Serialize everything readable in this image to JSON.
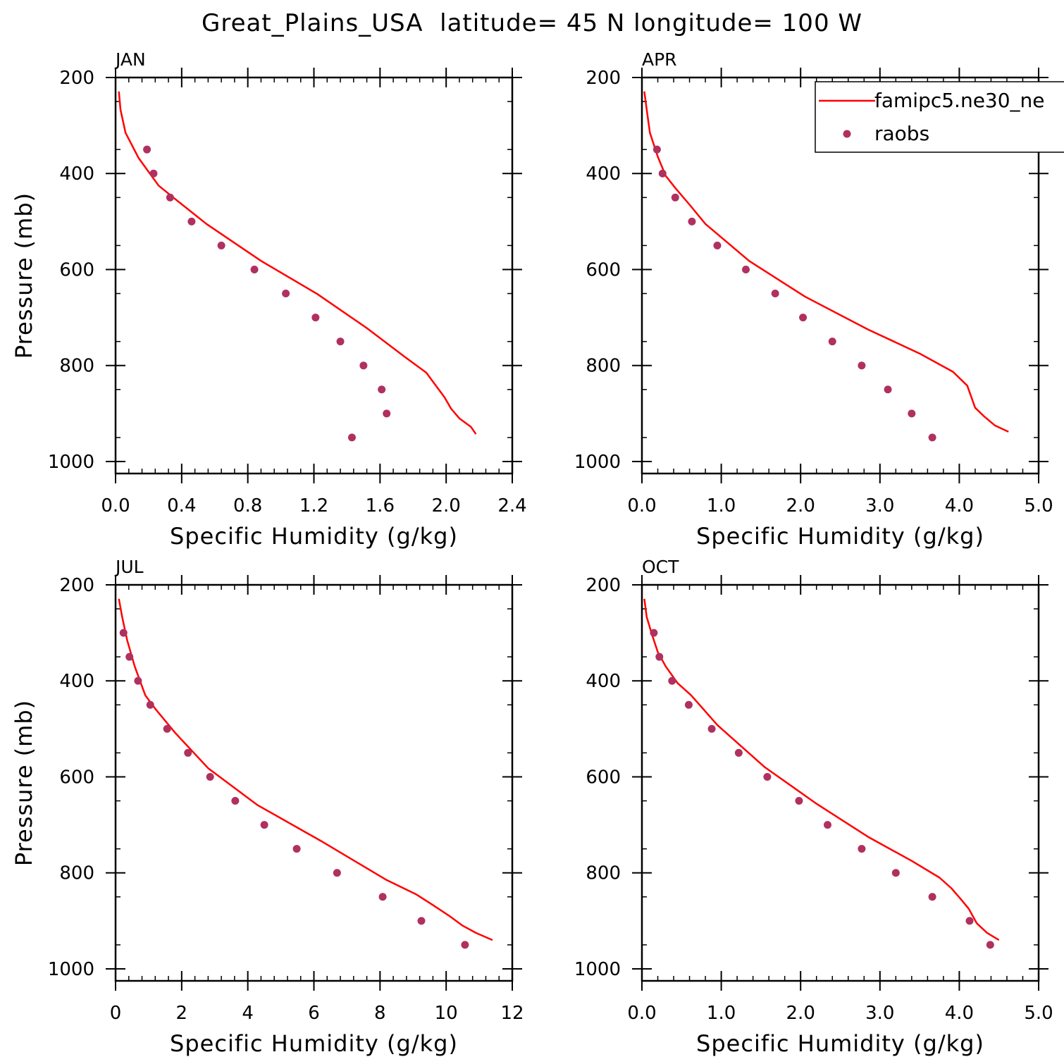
{
  "title": "Great_Plains_USA  latitude= 45 N longitude= 100 W",
  "legend": {
    "placement": "top-right of APR panel",
    "model_label": "famipc5.ne30_ne",
    "obs_label": "raobs",
    "model_color": "#ff0000",
    "obs_color": "#b03060"
  },
  "chart_data": [
    {
      "type": "line",
      "month": "JAN",
      "xlabel": "Specific Humidity (g/kg)",
      "ylabel": "Pressure (mb)",
      "xlim": [
        0,
        2.4
      ],
      "ylim": [
        1025,
        200
      ],
      "xticks": [
        "0.0",
        "0.4",
        "0.8",
        "1.2",
        "1.6",
        "2.0",
        "2.4"
      ],
      "yticks": [
        "200",
        "400",
        "600",
        "800",
        "1000"
      ],
      "model": {
        "x": [
          0.02,
          0.03,
          0.06,
          0.14,
          0.26,
          0.36,
          0.55,
          0.88,
          1.22,
          1.52,
          1.75,
          1.88,
          1.94,
          1.99,
          2.03,
          2.08,
          2.15,
          2.18
        ],
        "y": [
          229,
          267,
          315,
          368,
          425,
          453,
          505,
          582,
          651,
          722,
          782,
          815,
          843,
          866,
          890,
          910,
          928,
          943
        ]
      },
      "obs": {
        "x": [
          0.19,
          0.23,
          0.33,
          0.46,
          0.64,
          0.84,
          1.03,
          1.21,
          1.36,
          1.5,
          1.61,
          1.64,
          1.43
        ],
        "y": [
          350,
          400,
          450,
          500,
          550,
          600,
          650,
          700,
          750,
          800,
          850,
          900,
          950
        ]
      }
    },
    {
      "type": "line",
      "month": "APR",
      "xlabel": "Specific Humidity (g/kg)",
      "ylabel": "",
      "xlim": [
        0,
        5.0
      ],
      "ylim": [
        1025,
        200
      ],
      "xticks": [
        "0.0",
        "1.0",
        "2.0",
        "3.0",
        "4.0",
        "5.0"
      ],
      "yticks": [
        "200",
        "400",
        "600",
        "800",
        "1000"
      ],
      "model": {
        "x": [
          0.03,
          0.06,
          0.1,
          0.2,
          0.3,
          0.42,
          0.6,
          0.8,
          1.35,
          2.05,
          2.85,
          3.5,
          3.92,
          4.1,
          4.2,
          4.32,
          4.45,
          4.62
        ],
        "y": [
          229,
          267,
          315,
          365,
          405,
          430,
          465,
          505,
          582,
          656,
          725,
          775,
          813,
          842,
          888,
          907,
          925,
          938
        ]
      },
      "obs": {
        "x": [
          0.19,
          0.26,
          0.42,
          0.63,
          0.95,
          1.31,
          1.68,
          2.03,
          2.4,
          2.77,
          3.1,
          3.4,
          3.66
        ],
        "y": [
          350,
          400,
          450,
          500,
          550,
          600,
          650,
          700,
          750,
          800,
          850,
          900,
          950
        ]
      }
    },
    {
      "type": "line",
      "month": "JUL",
      "xlabel": "Specific Humidity (g/kg)",
      "ylabel": "Pressure (mb)",
      "xlim": [
        0,
        12
      ],
      "ylim": [
        1025,
        200
      ],
      "xticks": [
        "0",
        "2",
        "4",
        "6",
        "8",
        "10",
        "12"
      ],
      "yticks": [
        "200",
        "400",
        "600",
        "800",
        "1000"
      ],
      "model": {
        "x": [
          0.1,
          0.2,
          0.35,
          0.58,
          0.9,
          1.2,
          1.8,
          2.8,
          4.3,
          6.2,
          8.2,
          9.1,
          9.6,
          10.1,
          10.5,
          10.9,
          11.4
        ],
        "y": [
          229,
          267,
          315,
          370,
          430,
          458,
          508,
          582,
          659,
          733,
          815,
          845,
          867,
          890,
          910,
          925,
          940
        ]
      },
      "obs": {
        "x": [
          0.24,
          0.42,
          0.68,
          1.05,
          1.56,
          2.19,
          2.86,
          3.62,
          4.5,
          5.48,
          6.7,
          8.08,
          9.25,
          10.57
        ],
        "y": [
          300,
          350,
          400,
          450,
          500,
          550,
          600,
          650,
          700,
          750,
          800,
          850,
          900,
          950
        ]
      }
    },
    {
      "type": "line",
      "month": "OCT",
      "xlabel": "Specific Humidity (g/kg)",
      "ylabel": "",
      "xlim": [
        0,
        5.0
      ],
      "ylim": [
        1025,
        200
      ],
      "xticks": [
        "0.0",
        "1.0",
        "2.0",
        "3.0",
        "4.0",
        "5.0"
      ],
      "yticks": [
        "200",
        "400",
        "600",
        "800",
        "1000"
      ],
      "model": {
        "x": [
          0.03,
          0.06,
          0.12,
          0.2,
          0.3,
          0.45,
          0.62,
          0.95,
          1.55,
          2.2,
          2.85,
          3.4,
          3.75,
          3.9,
          4.02,
          4.12,
          4.22,
          4.35,
          4.5
        ],
        "y": [
          229,
          267,
          300,
          340,
          370,
          405,
          430,
          492,
          580,
          656,
          725,
          775,
          810,
          832,
          855,
          875,
          905,
          925,
          940
        ]
      },
      "obs": {
        "x": [
          0.15,
          0.22,
          0.38,
          0.59,
          0.88,
          1.22,
          1.58,
          1.98,
          2.34,
          2.77,
          3.2,
          3.66,
          4.13,
          4.39
        ],
        "y": [
          300,
          350,
          400,
          450,
          500,
          550,
          600,
          650,
          700,
          750,
          800,
          850,
          900,
          950
        ]
      }
    }
  ]
}
